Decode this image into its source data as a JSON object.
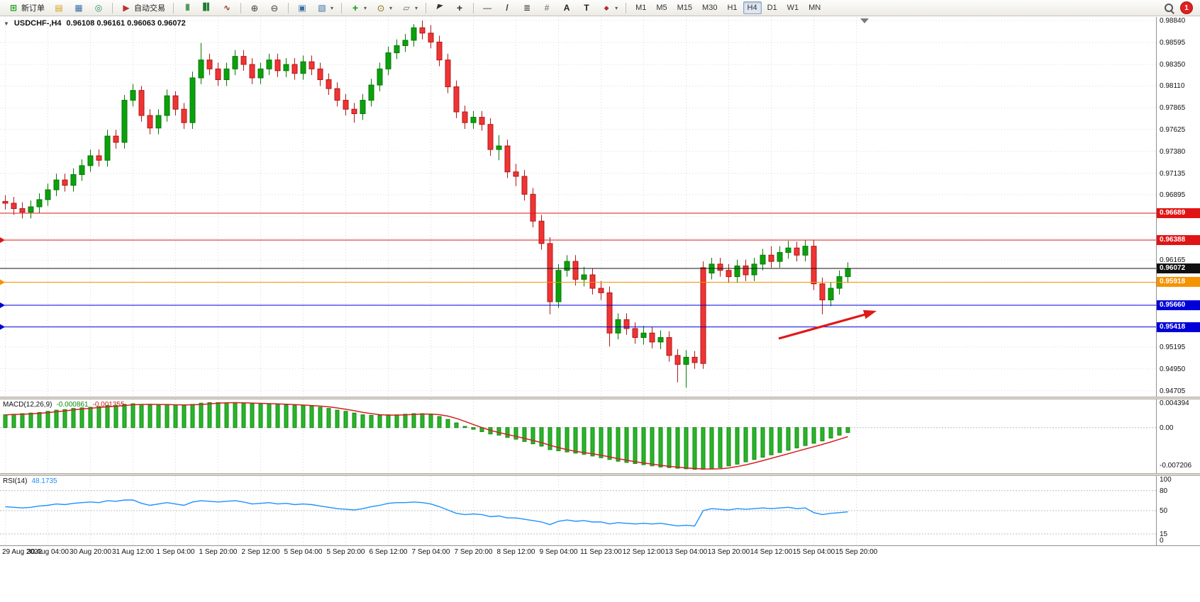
{
  "toolbar": {
    "new_order_label": "新订单",
    "auto_trading_label": "自动交易",
    "timeframes": [
      "M1",
      "M5",
      "M15",
      "M30",
      "H1",
      "H4",
      "D1",
      "W1",
      "MN"
    ],
    "active_timeframe": "H4",
    "notification_count": "1"
  },
  "icons": {
    "new-order-icon": "⊞",
    "market-watch-icon": "▤",
    "data-window-icon": "▦",
    "navigator-icon": "◎",
    "auto-trading-icon": "▶",
    "bar-chart-icon": "|||",
    "candlestick-icon": "▋▍",
    "line-chart-icon": "∿",
    "zoom-in-icon": "⊕",
    "zoom-out-icon": "⊖",
    "tile-windows-icon": "▣",
    "cascade-windows-icon": "▧",
    "indicators-icon": "+",
    "periods-icon": "⊙",
    "templates-icon": "▱",
    "cursor-icon": "◤",
    "crosshair-icon": "+",
    "hline-icon": "—",
    "trendline-icon": "/",
    "fibonacci-icon": "≣",
    "grid-icon": "#",
    "text-icon": "A",
    "label-icon": "T",
    "shapes-icon": "◆",
    "one-click-toggle-icon": "▼",
    "dropdown-caret-icon": "▾"
  },
  "chart": {
    "symbol_period": "USDCHF-,H4",
    "ohlc": "0.96108 0.96161 0.96063 0.96072"
  },
  "chart_data": {
    "type": "candlestick+indicators",
    "symbol": "USDCHF",
    "period": "H4",
    "price_axis_labels": [
      "0.98840",
      "0.98595",
      "0.98350",
      "0.98110",
      "0.97865",
      "0.97625",
      "0.97380",
      "0.97135",
      "0.96895",
      "0.96650",
      "0.96405",
      "0.96165",
      "0.95920",
      "0.95675",
      "0.95435",
      "0.95195",
      "0.94950",
      "0.94705"
    ],
    "price_lines": [
      {
        "label": "0.96689",
        "color": "#e01414",
        "marker": false,
        "dashed": false
      },
      {
        "label": "0.96388",
        "color": "#e01414",
        "marker": true,
        "dashed": false
      },
      {
        "label": "0.96072",
        "color": "#101010",
        "marker": false,
        "dashed": false
      },
      {
        "label": "0.95918",
        "color": "#f59300",
        "marker": true,
        "dashed": false
      },
      {
        "label": "0.95660",
        "color": "#0000d8",
        "marker": true,
        "dashed": false
      },
      {
        "label": "0.95418",
        "color": "#0000d8",
        "marker": true,
        "dashed": false
      }
    ],
    "x_labels": [
      "29 Aug 2022",
      "30 Aug 04:00",
      "30 Aug 20:00",
      "31 Aug 12:00",
      "1 Sep 04:00",
      "1 Sep 20:00",
      "2 Sep 12:00",
      "5 Sep 04:00",
      "5 Sep 20:00",
      "6 Sep 12:00",
      "7 Sep 04:00",
      "7 Sep 20:00",
      "8 Sep 12:00",
      "9 Sep 04:00",
      "11 Sep 23:00",
      "12 Sep 12:00",
      "13 Sep 04:00",
      "13 Sep 20:00",
      "14 Sep 12:00",
      "15 Sep 04:00",
      "15 Sep 20:00"
    ],
    "candles": [
      [
        0.9682,
        0.9689,
        0.9673,
        0.968
      ],
      [
        0.968,
        0.9687,
        0.9667,
        0.9674
      ],
      [
        0.9674,
        0.9681,
        0.9663,
        0.967
      ],
      [
        0.967,
        0.9683,
        0.9663,
        0.9676
      ],
      [
        0.9676,
        0.9691,
        0.9669,
        0.9684
      ],
      [
        0.9684,
        0.9702,
        0.9677,
        0.9695
      ],
      [
        0.9695,
        0.9713,
        0.9688,
        0.9706
      ],
      [
        0.9706,
        0.9713,
        0.9693,
        0.97
      ],
      [
        0.97,
        0.9719,
        0.9693,
        0.9712
      ],
      [
        0.9712,
        0.9729,
        0.9705,
        0.9722
      ],
      [
        0.9722,
        0.974,
        0.9715,
        0.9733
      ],
      [
        0.9733,
        0.974,
        0.9721,
        0.9728
      ],
      [
        0.9728,
        0.9762,
        0.9721,
        0.9755
      ],
      [
        0.9755,
        0.9762,
        0.9741,
        0.9748
      ],
      [
        0.9748,
        0.9801,
        0.9741,
        0.9795
      ],
      [
        0.9795,
        0.9813,
        0.9788,
        0.9806
      ],
      [
        0.9806,
        0.9811,
        0.9771,
        0.9778
      ],
      [
        0.9778,
        0.9785,
        0.9757,
        0.9764
      ],
      [
        0.9764,
        0.9785,
        0.9757,
        0.9778
      ],
      [
        0.9778,
        0.9807,
        0.9771,
        0.98
      ],
      [
        0.98,
        0.9805,
        0.9778,
        0.9785
      ],
      [
        0.9785,
        0.9792,
        0.9763,
        0.977
      ],
      [
        0.977,
        0.9827,
        0.9763,
        0.982
      ],
      [
        0.982,
        0.9859,
        0.9813,
        0.984
      ],
      [
        0.984,
        0.9847,
        0.9823,
        0.983
      ],
      [
        0.983,
        0.9837,
        0.9811,
        0.9818
      ],
      [
        0.9818,
        0.9837,
        0.9811,
        0.983
      ],
      [
        0.983,
        0.9851,
        0.9823,
        0.9844
      ],
      [
        0.9844,
        0.9851,
        0.9828,
        0.9835
      ],
      [
        0.9835,
        0.9842,
        0.9813,
        0.982
      ],
      [
        0.982,
        0.9837,
        0.9813,
        0.983
      ],
      [
        0.983,
        0.9847,
        0.9823,
        0.984
      ],
      [
        0.984,
        0.9847,
        0.9821,
        0.9828
      ],
      [
        0.9828,
        0.9842,
        0.9821,
        0.9835
      ],
      [
        0.9835,
        0.9842,
        0.9818,
        0.9825
      ],
      [
        0.9825,
        0.9845,
        0.9818,
        0.9838
      ],
      [
        0.9838,
        0.9845,
        0.9823,
        0.983
      ],
      [
        0.983,
        0.9837,
        0.9811,
        0.9818
      ],
      [
        0.9818,
        0.9825,
        0.9801,
        0.9808
      ],
      [
        0.9808,
        0.9815,
        0.9788,
        0.9795
      ],
      [
        0.9795,
        0.9802,
        0.9778,
        0.9785
      ],
      [
        0.9785,
        0.9792,
        0.977,
        0.978
      ],
      [
        0.978,
        0.9802,
        0.9773,
        0.9795
      ],
      [
        0.9795,
        0.9819,
        0.9788,
        0.9812
      ],
      [
        0.9812,
        0.9837,
        0.9805,
        0.983
      ],
      [
        0.983,
        0.9855,
        0.9823,
        0.9848
      ],
      [
        0.9848,
        0.9863,
        0.9841,
        0.9856
      ],
      [
        0.9856,
        0.9869,
        0.9849,
        0.9862
      ],
      [
        0.9862,
        0.988,
        0.9855,
        0.9876
      ],
      [
        0.9876,
        0.9884,
        0.9863,
        0.987
      ],
      [
        0.987,
        0.9879,
        0.9853,
        0.986
      ],
      [
        0.986,
        0.9867,
        0.9833,
        0.984
      ],
      [
        0.984,
        0.9847,
        0.9803,
        0.981
      ],
      [
        0.981,
        0.9817,
        0.9775,
        0.9782
      ],
      [
        0.9782,
        0.9789,
        0.9763,
        0.977
      ],
      [
        0.977,
        0.9783,
        0.9763,
        0.9776
      ],
      [
        0.9776,
        0.9783,
        0.9761,
        0.9768
      ],
      [
        0.9768,
        0.9775,
        0.9733,
        0.974
      ],
      [
        0.974,
        0.9756,
        0.9728,
        0.9744
      ],
      [
        0.9744,
        0.9751,
        0.9708,
        0.9715
      ],
      [
        0.9715,
        0.9724,
        0.9699,
        0.971
      ],
      [
        0.971,
        0.9717,
        0.9683,
        0.969
      ],
      [
        0.969,
        0.9697,
        0.9653,
        0.966
      ],
      [
        0.966,
        0.9667,
        0.9628,
        0.9635
      ],
      [
        0.9635,
        0.9642,
        0.9556,
        0.957
      ],
      [
        0.957,
        0.9612,
        0.9563,
        0.9605
      ],
      [
        0.9605,
        0.9622,
        0.9598,
        0.9615
      ],
      [
        0.9615,
        0.9622,
        0.9588,
        0.9595
      ],
      [
        0.9595,
        0.9609,
        0.9587,
        0.96
      ],
      [
        0.96,
        0.9607,
        0.9578,
        0.9585
      ],
      [
        0.9585,
        0.9593,
        0.9572,
        0.958
      ],
      [
        0.958,
        0.9587,
        0.952,
        0.9535
      ],
      [
        0.9535,
        0.9557,
        0.9528,
        0.955
      ],
      [
        0.955,
        0.9557,
        0.9533,
        0.954
      ],
      [
        0.954,
        0.9547,
        0.9523,
        0.953
      ],
      [
        0.953,
        0.9543,
        0.9522,
        0.9535
      ],
      [
        0.9535,
        0.9542,
        0.9518,
        0.9525
      ],
      [
        0.9525,
        0.9538,
        0.9517,
        0.953
      ],
      [
        0.953,
        0.9537,
        0.9503,
        0.951
      ],
      [
        0.951,
        0.9517,
        0.948,
        0.95
      ],
      [
        0.95,
        0.9516,
        0.9474,
        0.9508
      ],
      [
        0.9508,
        0.9515,
        0.9495,
        0.9502
      ],
      [
        0.9608,
        0.9615,
        0.9495,
        0.9501
      ],
      [
        0.9602,
        0.9619,
        0.9595,
        0.9612
      ],
      [
        0.9612,
        0.9619,
        0.9598,
        0.9605
      ],
      [
        0.9605,
        0.9612,
        0.9591,
        0.9598
      ],
      [
        0.9598,
        0.9617,
        0.9591,
        0.961
      ],
      [
        0.961,
        0.9617,
        0.9593,
        0.96
      ],
      [
        0.96,
        0.9619,
        0.9593,
        0.9612
      ],
      [
        0.9612,
        0.9629,
        0.9605,
        0.9622
      ],
      [
        0.9622,
        0.9632,
        0.9608,
        0.9615
      ],
      [
        0.9615,
        0.9632,
        0.9608,
        0.9625
      ],
      [
        0.9625,
        0.9638,
        0.9618,
        0.963
      ],
      [
        0.963,
        0.9637,
        0.9615,
        0.9622
      ],
      [
        0.9622,
        0.9639,
        0.9615,
        0.9632
      ],
      [
        0.9632,
        0.9639,
        0.9583,
        0.959
      ],
      [
        0.959,
        0.9597,
        0.9556,
        0.9572
      ],
      [
        0.9572,
        0.9592,
        0.9565,
        0.9585
      ],
      [
        0.9585,
        0.9605,
        0.9578,
        0.9598
      ],
      [
        0.9598,
        0.9614,
        0.9591,
        0.96072
      ]
    ],
    "macd": {
      "label": "MACD(12,26,9)",
      "value_main": "-0.000861",
      "value_signal": "-0.001355",
      "scale_labels": [
        "0.004394",
        "0.00",
        "-0.007206"
      ],
      "values": [
        0.0022,
        0.0023,
        0.0024,
        0.0025,
        0.0026,
        0.0028,
        0.003,
        0.0031,
        0.0033,
        0.0034,
        0.0035,
        0.0036,
        0.0038,
        0.0038,
        0.004,
        0.0041,
        0.004,
        0.0039,
        0.0039,
        0.004,
        0.0039,
        0.0038,
        0.004,
        0.0042,
        0.0043,
        0.0043,
        0.0043,
        0.0043,
        0.0042,
        0.0041,
        0.0041,
        0.0041,
        0.004,
        0.0039,
        0.0038,
        0.0038,
        0.0037,
        0.0035,
        0.0033,
        0.003,
        0.0028,
        0.0025,
        0.0022,
        0.0021,
        0.0021,
        0.0022,
        0.0022,
        0.0023,
        0.0024,
        0.0024,
        0.0022,
        0.0019,
        0.0014,
        0.0008,
        0.0002,
        -0.0003,
        -0.0007,
        -0.0011,
        -0.0013,
        -0.0017,
        -0.002,
        -0.0024,
        -0.0028,
        -0.0032,
        -0.0038,
        -0.004,
        -0.0042,
        -0.0044,
        -0.0046,
        -0.0049,
        -0.0052,
        -0.0055,
        -0.0058,
        -0.006,
        -0.0062,
        -0.0064,
        -0.0066,
        -0.0068,
        -0.0069,
        -0.007,
        -0.0071,
        -0.0072,
        -0.0072,
        -0.0071,
        -0.0069,
        -0.0066,
        -0.0063,
        -0.0059,
        -0.0055,
        -0.0051,
        -0.0047,
        -0.0043,
        -0.0039,
        -0.0035,
        -0.0031,
        -0.0027,
        -0.0023,
        -0.0018,
        -0.0013,
        -0.00086
      ]
    },
    "rsi": {
      "label": "RSI(14)",
      "value": "48.1735",
      "levels": [
        "100",
        "80",
        "50",
        "15",
        "0"
      ],
      "values": [
        56,
        55,
        54,
        55,
        57,
        58,
        60,
        59,
        61,
        62,
        63,
        62,
        65,
        64,
        66,
        66,
        61,
        58,
        60,
        62,
        60,
        58,
        63,
        65,
        64,
        63,
        64,
        65,
        63,
        60,
        61,
        62,
        60,
        61,
        59,
        60,
        59,
        57,
        55,
        53,
        52,
        51,
        53,
        56,
        58,
        61,
        62,
        62,
        63,
        62,
        60,
        56,
        51,
        46,
        44,
        45,
        44,
        41,
        42,
        39,
        39,
        37,
        35,
        33,
        29,
        34,
        36,
        34,
        35,
        33,
        33,
        30,
        32,
        31,
        30,
        31,
        30,
        31,
        29,
        27,
        28,
        27,
        50,
        53,
        52,
        51,
        53,
        52,
        53,
        54,
        53,
        54,
        55,
        53,
        54,
        47,
        44,
        46,
        47,
        48.17
      ]
    },
    "colors": {
      "bull": "#0ca10c",
      "bull_border": "#067806",
      "bear": "#ef3434",
      "bear_border": "#b01818",
      "macd_bar": "#2ab52a",
      "macd_bar_border": "#128a12",
      "macd_signal": "#d62020",
      "rsi_line": "#1E90FF",
      "arrow": "#e01818",
      "grid": "#d9d9d9"
    }
  }
}
